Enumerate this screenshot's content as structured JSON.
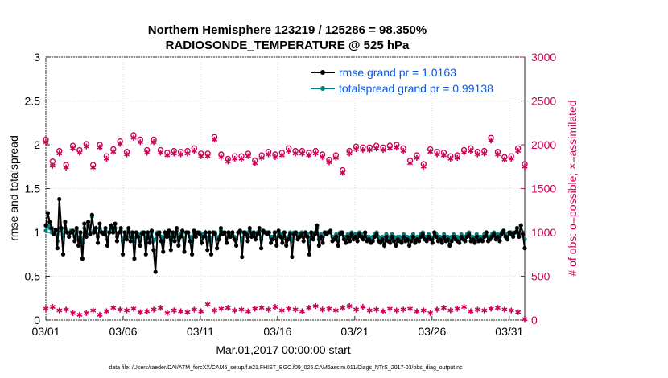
{
  "chart_data": {
    "type": "line",
    "title": "Northern Hemisphere 123219 / 125286 = 98.350%",
    "subtitle": "RADIOSONDE_TEMPERATURE @ 525 hPa",
    "xlabel": "Mar.01,2017 00:00:00 start",
    "ylabel": "rmse and totalspread",
    "y2label": "# of obs: o=possible; ×=assimilated",
    "ylim": [
      0,
      3
    ],
    "y2lim": [
      0,
      3000
    ],
    "xlim": [
      0,
      31
    ],
    "x_ticks": [
      0,
      5,
      10,
      15,
      20,
      25,
      30
    ],
    "x_tick_labels": [
      "03/01",
      "03/06",
      "03/11",
      "03/16",
      "03/21",
      "03/26",
      "03/31"
    ],
    "y_ticks": [
      0,
      0.5,
      1,
      1.5,
      2,
      2.5,
      3
    ],
    "y_tick_labels": [
      "0",
      "0.5",
      "1",
      "1.5",
      "2",
      "2.5",
      "3"
    ],
    "y2_ticks": [
      0,
      500,
      1000,
      1500,
      2000,
      2500,
      3000
    ],
    "y2_tick_labels": [
      "0",
      "500",
      "1000",
      "1500",
      "2000",
      "2500",
      "3000"
    ],
    "legend": {
      "placement": "top-right",
      "entries": [
        "rmse grand pr = 1.0163",
        "totalspread grand pr = 0.99138"
      ]
    },
    "series": [
      {
        "name": "rmse grand pr = 1.0163",
        "color": "#000000",
        "axis": "left",
        "values": [
          1.08,
          1.22,
          1.12,
          1.05,
          0.98,
          1.03,
          0.82,
          1.38,
          1.05,
          0.75,
          1.12,
          1.0,
          0.95,
          1.0,
          1.02,
          0.9,
          1.05,
          0.85,
          1.0,
          0.7,
          1.1,
          0.95,
          1.12,
          0.98,
          1.2,
          1.0,
          1.05,
          0.88,
          1.1,
          1.0,
          0.98,
          1.05,
          0.85,
          1.0,
          1.08,
          1.0,
          1.1,
          0.9,
          1.0,
          1.05,
          0.75,
          1.0,
          0.92,
          1.05,
          0.9,
          1.0,
          0.7,
          1.0,
          0.95,
          0.85,
          0.98,
          1.0,
          0.75,
          1.0,
          0.88,
          1.02,
          0.8,
          0.55,
          0.98,
          1.0,
          0.9,
          0.78,
          1.0,
          0.95,
          1.02,
          0.8,
          1.0,
          0.9,
          1.05,
          0.85,
          0.95,
          1.02,
          0.78,
          1.0,
          1.0,
          0.9,
          0.75,
          1.02,
          0.95,
          1.0,
          0.98,
          0.88,
          0.95,
          1.0,
          0.8,
          1.0,
          0.75,
          1.0,
          0.98,
          0.82,
          0.92,
          1.05,
          0.98,
          1.0,
          0.88,
          1.0,
          0.95,
          1.0,
          0.92,
          0.85,
          1.0,
          1.02,
          0.72,
          1.0,
          0.98,
          0.9,
          1.05,
          0.95,
          1.0,
          0.92,
          0.98,
          1.05,
          0.82,
          1.02,
          1.0,
          0.98,
          1.0,
          0.88,
          0.92,
          1.0,
          0.85,
          1.02,
          0.95,
          0.88,
          1.0,
          0.85,
          0.92,
          0.98,
          0.72,
          0.98,
          1.0,
          0.92,
          0.95,
          0.98,
          0.9,
          1.0,
          0.95,
          0.75,
          1.0,
          0.92,
          0.98,
          1.08,
          0.85,
          0.95,
          0.88,
          1.0,
          0.98,
          1.0,
          1.02,
          0.9,
          0.92,
          0.95,
          0.85,
          0.98,
          1.0,
          0.92,
          0.88,
          0.95,
          0.9,
          0.98,
          0.92,
          0.95,
          0.9,
          0.98,
          0.95,
          0.92,
          1.0,
          0.9,
          0.92,
          0.88,
          0.9,
          0.95,
          0.98,
          0.9,
          0.88,
          0.92,
          0.85,
          0.95,
          0.9,
          0.88,
          0.95,
          0.9,
          0.85,
          0.92,
          0.9,
          0.88,
          0.95,
          0.9,
          0.92,
          0.85,
          0.9,
          0.95,
          0.88,
          0.92,
          0.9,
          0.95,
          0.98,
          0.92,
          0.9,
          0.95,
          0.92,
          0.88,
          1.0,
          0.95,
          0.9,
          0.92,
          0.88,
          0.95,
          0.9,
          0.92,
          0.85,
          0.9,
          0.95,
          0.92,
          0.9,
          0.88,
          0.95,
          0.92,
          0.9,
          0.95,
          0.98,
          0.9,
          0.92,
          0.88,
          0.95,
          0.9,
          0.92,
          0.9,
          0.95,
          1.0,
          0.9,
          0.92,
          0.95,
          0.98,
          0.92,
          0.95,
          0.9,
          0.98,
          1.02,
          0.95,
          0.92,
          1.0,
          0.98,
          0.95,
          1.0,
          1.05,
          0.95,
          1.08,
          0.98,
          0.82
        ]
      },
      {
        "name": "totalspread grand pr = 0.99138",
        "color": "#008080",
        "axis": "left",
        "values": [
          1.02,
          1.08,
          1.05,
          1.0,
          0.98,
          1.02,
          0.9,
          1.05,
          1.02,
          0.95,
          1.05,
          1.0,
          0.98,
          1.02,
          1.0,
          0.95,
          1.02,
          0.92,
          1.0,
          0.88,
          1.05,
          0.98,
          1.08,
          1.0,
          1.18,
          1.02,
          1.05,
          0.95,
          1.05,
          1.0,
          1.0,
          1.02,
          0.92,
          1.0,
          1.05,
          1.0,
          1.05,
          0.95,
          1.0,
          1.02,
          0.9,
          1.0,
          0.95,
          1.02,
          0.95,
          1.0,
          0.9,
          1.0,
          0.98,
          0.92,
          1.0,
          1.0,
          0.92,
          1.0,
          0.95,
          1.0,
          0.9,
          0.92,
          1.0,
          1.0,
          0.95,
          0.9,
          1.0,
          0.98,
          1.0,
          0.92,
          1.0,
          0.95,
          1.02,
          0.92,
          0.98,
          1.0,
          0.9,
          1.0,
          1.0,
          0.95,
          0.9,
          1.0,
          0.98,
          1.0,
          1.0,
          0.95,
          0.98,
          1.0,
          0.92,
          1.0,
          0.9,
          1.0,
          1.0,
          0.92,
          0.95,
          1.02,
          1.0,
          1.0,
          0.95,
          1.0,
          0.98,
          1.0,
          0.95,
          0.92,
          1.0,
          1.0,
          0.9,
          1.0,
          1.0,
          0.95,
          1.02,
          0.98,
          1.0,
          0.95,
          1.0,
          1.02,
          0.92,
          1.0,
          1.0,
          1.0,
          1.0,
          0.95,
          0.95,
          1.0,
          0.92,
          1.0,
          0.98,
          0.95,
          1.0,
          0.92,
          0.95,
          1.0,
          0.9,
          1.0,
          1.0,
          0.95,
          0.98,
          1.0,
          0.95,
          1.0,
          0.98,
          0.9,
          1.0,
          0.95,
          1.0,
          1.05,
          0.92,
          0.98,
          0.95,
          1.0,
          1.0,
          1.0,
          1.0,
          0.95,
          0.95,
          0.98,
          0.92,
          1.0,
          1.0,
          0.95,
          0.95,
          0.98,
          0.95,
          1.0,
          0.95,
          0.98,
          0.95,
          1.0,
          0.98,
          0.95,
          1.0,
          0.95,
          0.95,
          0.92,
          0.95,
          0.98,
          1.0,
          0.95,
          0.92,
          0.95,
          0.92,
          0.98,
          0.95,
          0.92,
          0.98,
          0.95,
          0.92,
          0.95,
          0.95,
          0.92,
          0.98,
          0.95,
          0.95,
          0.92,
          0.95,
          0.98,
          0.92,
          0.95,
          0.95,
          0.98,
          1.0,
          0.95,
          0.95,
          0.98,
          0.95,
          0.92,
          1.0,
          0.98,
          0.95,
          0.95,
          0.92,
          0.98,
          0.95,
          0.95,
          0.92,
          0.95,
          0.98,
          0.95,
          0.95,
          0.92,
          0.98,
          0.95,
          0.95,
          0.98,
          1.0,
          0.95,
          0.95,
          0.92,
          0.98,
          0.95,
          0.95,
          0.95,
          0.98,
          1.0,
          0.95,
          0.95,
          0.98,
          1.0,
          0.95,
          0.98,
          0.95,
          1.0,
          1.02,
          0.98,
          0.95,
          1.0,
          1.0,
          0.98,
          1.0,
          1.05,
          0.98,
          1.08,
          1.0,
          0.92
        ]
      }
    ],
    "obs_possible_color": "#cc0055",
    "obs_assimilated_color": "#cc0055",
    "obs_possible_high": [
      2060,
      1810,
      1930,
      1770,
      1990,
      1940,
      2010,
      1770,
      2000,
      1870,
      1950,
      2040,
      1920,
      2110,
      2060,
      1940,
      2060,
      1940,
      1910,
      1930,
      1920,
      1930,
      1960,
      1900,
      1900,
      2090,
      1890,
      1840,
      1870,
      1870,
      1900,
      1820,
      1880,
      1920,
      1890,
      1910,
      1960,
      1930,
      1930,
      1910,
      1930,
      1890,
      1830,
      1880,
      1710,
      1930,
      1980,
      1970,
      1970,
      1990,
      1970,
      1990,
      2000,
      1960,
      1820,
      1880,
      1780,
      1950,
      1920,
      1910,
      1870,
      1880,
      1940,
      1960,
      1920,
      1930,
      2080,
      1920,
      1860,
      1870,
      1960,
      1780
    ],
    "obs_assimilated_high": [
      2030,
      1760,
      1900,
      1740,
      1960,
      1910,
      1980,
      1740,
      1970,
      1840,
      1920,
      2010,
      1890,
      2080,
      2030,
      1910,
      2030,
      1910,
      1880,
      1900,
      1890,
      1900,
      1930,
      1870,
      1870,
      2060,
      1860,
      1810,
      1840,
      1840,
      1870,
      1790,
      1850,
      1890,
      1860,
      1880,
      1930,
      1900,
      1900,
      1880,
      1900,
      1860,
      1800,
      1850,
      1680,
      1900,
      1950,
      1940,
      1940,
      1960,
      1940,
      1960,
      1970,
      1930,
      1790,
      1850,
      1750,
      1920,
      1890,
      1880,
      1840,
      1850,
      1910,
      1930,
      1890,
      1900,
      2050,
      1890,
      1830,
      1840,
      1930,
      1750
    ],
    "obs_low": [
      130,
      150,
      110,
      120,
      80,
      60,
      80,
      110,
      60,
      100,
      140,
      120,
      110,
      130,
      90,
      100,
      120,
      140,
      80,
      110,
      100,
      90,
      120,
      100,
      180,
      110,
      130,
      140,
      110,
      120,
      100,
      130,
      140,
      120,
      150,
      110,
      130,
      120,
      100,
      140,
      160,
      120,
      130,
      110,
      140,
      160,
      120,
      150,
      110,
      120,
      100,
      130,
      110,
      120,
      130,
      100,
      110,
      80,
      120,
      140,
      110,
      130,
      150,
      100,
      120,
      110,
      130,
      140,
      120,
      110,
      90,
      10
    ],
    "footer": "data file: /Users/raeder/DAI/ATM_forcXX/CAM6_setup/f.e21.FHIST_BGC.f09_025.CAM6assim.011/Diags_NTrS_2017-03/obs_diag_output.nc"
  }
}
